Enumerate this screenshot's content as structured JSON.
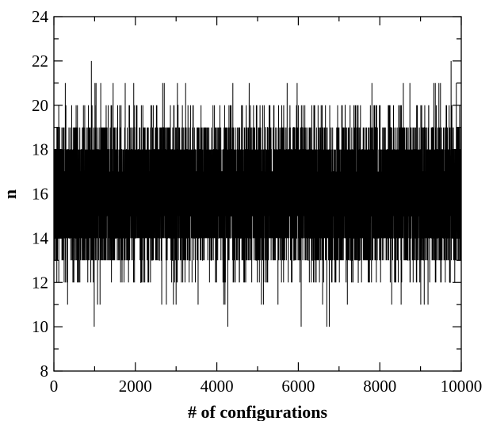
{
  "chart_data": {
    "type": "line",
    "xlabel": "# of configurations",
    "ylabel": "n",
    "xlim": [
      0,
      10000
    ],
    "ylim": [
      8,
      24
    ],
    "xticks": [
      0,
      2000,
      4000,
      6000,
      8000,
      10000
    ],
    "yticks": [
      8,
      10,
      12,
      14,
      16,
      18,
      20,
      22,
      24
    ],
    "x_minor_step": 1000,
    "y_minor_step": 1,
    "grid": false,
    "line_color": "#000000",
    "series": [
      {
        "x_start": 0,
        "x_step": 1,
        "num_points": 10000,
        "value_range": [
          10,
          22
        ],
        "mean_approx": 16,
        "dense_band": [
          14,
          19
        ],
        "notable_points": [
          {
            "x": 920,
            "y": 22
          },
          {
            "x": 990,
            "y": 10
          },
          {
            "x": 4270,
            "y": 10
          },
          {
            "x": 6070,
            "y": 10
          },
          {
            "x": 6700,
            "y": 10
          },
          {
            "x": 6760,
            "y": 10
          },
          {
            "x": 9750,
            "y": 22
          }
        ]
      }
    ]
  }
}
